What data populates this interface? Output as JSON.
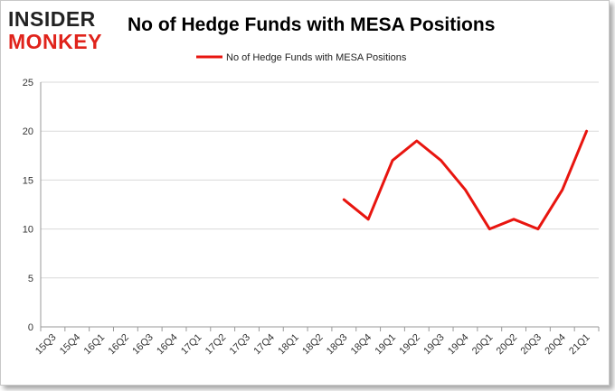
{
  "brand": {
    "line1": "INSIDER",
    "line2": "MONKEY"
  },
  "colors": {
    "series": "#e8150f",
    "grid": "#d9d9d9",
    "axis": "#999999",
    "brand_red": "#e0231b"
  },
  "chart_data": {
    "type": "line",
    "title": "No of Hedge Funds with MESA Positions",
    "xlabel": "",
    "ylabel": "",
    "categories": [
      "15Q3",
      "15Q4",
      "16Q1",
      "16Q2",
      "16Q3",
      "16Q4",
      "17Q1",
      "17Q2",
      "17Q3",
      "17Q4",
      "18Q1",
      "18Q2",
      "18Q3",
      "18Q4",
      "19Q1",
      "19Q2",
      "19Q3",
      "19Q4",
      "20Q1",
      "20Q2",
      "20Q3",
      "20Q4",
      "21Q1"
    ],
    "series": [
      {
        "name": "No of Hedge Funds with MESA Positions",
        "values": [
          null,
          null,
          null,
          null,
          null,
          null,
          null,
          null,
          null,
          null,
          null,
          null,
          13,
          11,
          17,
          19,
          17,
          14,
          10,
          11,
          10,
          14,
          20
        ]
      }
    ],
    "ylim": [
      0,
      25
    ],
    "yticks": [
      0,
      5,
      10,
      15,
      20,
      25
    ],
    "grid": true,
    "legend": "top-center"
  }
}
